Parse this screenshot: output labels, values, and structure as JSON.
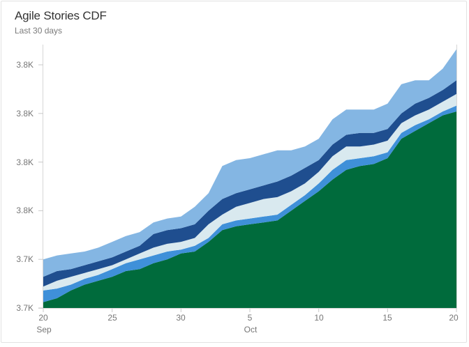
{
  "card": {
    "title": "Agile Stories CDF",
    "subtitle": "Last 30 days"
  },
  "chart_data": {
    "type": "area",
    "stacked": true,
    "title": "Agile Stories CDF",
    "subtitle": "Last 30 days",
    "grid": false,
    "legend": false,
    "baseline": 3700,
    "ylim": [
      3700,
      3840
    ],
    "y_axis": {
      "tick_labels": [
        "3.8K",
        "3.8K",
        "3.8K",
        "3.8K",
        "3.7K",
        "3.7K"
      ],
      "tick_values": [
        3825,
        3800,
        3775,
        3750,
        3725,
        3700
      ]
    },
    "x_axis": {
      "tick_labels": [
        "20",
        "25",
        "30",
        "5",
        "10",
        "15",
        "20"
      ],
      "tick_day_indices": [
        0,
        5,
        10,
        15,
        20,
        25,
        30
      ],
      "month_labels": [
        "Sep",
        "Oct"
      ]
    },
    "x_labels": [
      "Sep 20",
      "Sep 21",
      "Sep 22",
      "Sep 23",
      "Sep 24",
      "Sep 25",
      "Sep 26",
      "Sep 27",
      "Sep 28",
      "Sep 29",
      "Sep 30",
      "Oct 1",
      "Oct 2",
      "Oct 3",
      "Oct 4",
      "Oct 5",
      "Oct 6",
      "Oct 7",
      "Oct 8",
      "Oct 9",
      "Oct 10",
      "Oct 11",
      "Oct 12",
      "Oct 13",
      "Oct 14",
      "Oct 15",
      "Oct 16",
      "Oct 17",
      "Oct 18",
      "Oct 19",
      "Oct 20"
    ],
    "values_are": "cumulative stacked top-boundary values read from the y axis",
    "series": [
      {
        "name": "band-1-dark-green",
        "color": "#006B3C",
        "cumulative_levels": [
          3703,
          3705,
          3709,
          3712,
          3714,
          3716,
          3719,
          3720,
          3723,
          3725,
          3728,
          3729,
          3734,
          3740,
          3742,
          3743,
          3744,
          3745,
          3750,
          3755,
          3760,
          3766,
          3771,
          3773,
          3774,
          3777,
          3787,
          3791,
          3795,
          3799,
          3801
        ]
      },
      {
        "name": "band-2-medium-blue",
        "color": "#3F90D9",
        "cumulative_levels": [
          3709,
          3710,
          3712,
          3715,
          3717,
          3720,
          3723,
          3725,
          3727,
          3729,
          3730,
          3732,
          3736,
          3743,
          3745,
          3746,
          3747,
          3748,
          3753,
          3758,
          3764,
          3771,
          3776,
          3777,
          3778,
          3780,
          3790,
          3794,
          3797,
          3801,
          3804
        ]
      },
      {
        "name": "band-3-pale-blue",
        "color": "#D9E9EF",
        "cumulative_levels": [
          3711,
          3714,
          3716,
          3718,
          3720,
          3722,
          3725,
          3728,
          3731,
          3733,
          3734,
          3736,
          3743,
          3748,
          3752,
          3754,
          3756,
          3757,
          3760,
          3764,
          3770,
          3778,
          3783,
          3783,
          3784,
          3786,
          3795,
          3799,
          3802,
          3806,
          3810
        ]
      },
      {
        "name": "band-4-navy-blue",
        "color": "#1F4E8F",
        "cumulative_levels": [
          3716,
          3719,
          3720,
          3722,
          3724,
          3726,
          3729,
          3732,
          3738,
          3740,
          3741,
          3743,
          3750,
          3756,
          3759,
          3761,
          3763,
          3765,
          3768,
          3772,
          3776,
          3784,
          3789,
          3790,
          3790,
          3792,
          3800,
          3805,
          3808,
          3812,
          3817
        ]
      },
      {
        "name": "band-5-light-blue",
        "color": "#84B6E3",
        "cumulative_levels": [
          3725,
          3727,
          3728,
          3729,
          3731,
          3734,
          3737,
          3739,
          3744,
          3746,
          3747,
          3752,
          3759,
          3773,
          3776,
          3777,
          3779,
          3781,
          3781,
          3783,
          3787,
          3797,
          3802,
          3802,
          3802,
          3805,
          3815,
          3817,
          3817,
          3823,
          3833
        ]
      }
    ]
  }
}
